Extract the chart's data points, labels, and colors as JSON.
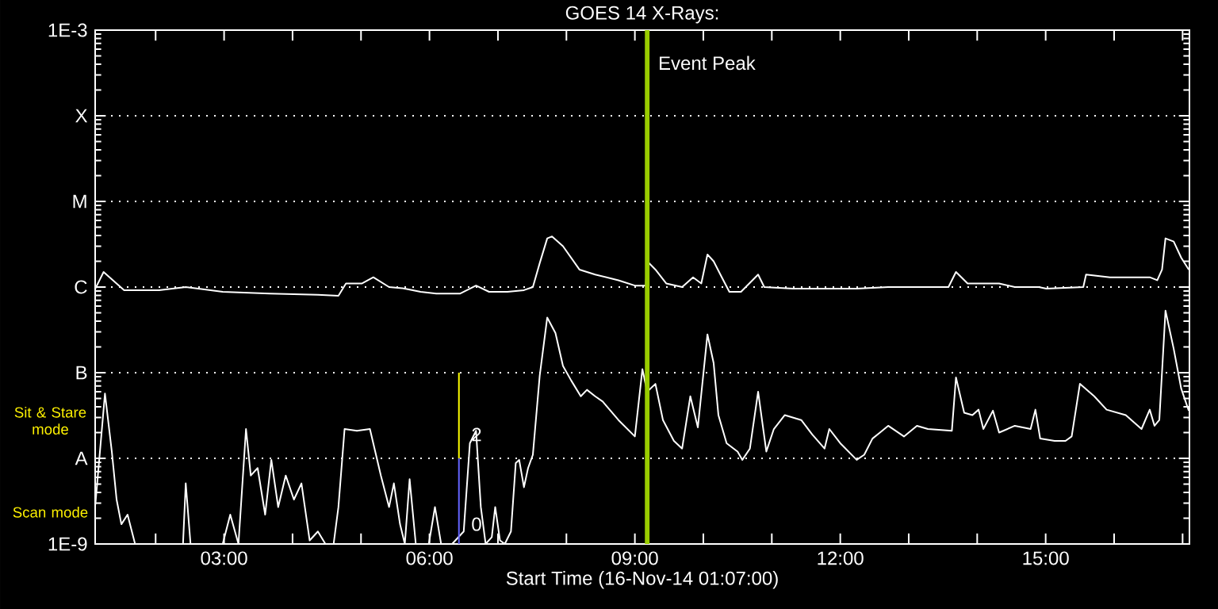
{
  "chart_data": {
    "type": "line",
    "title": "GOES 14 X-Rays:",
    "xlabel": "Start Time (16-Nov-14 01:07:00)",
    "xlim": [
      1.117,
      17.1
    ],
    "xticks": [
      {
        "value": 2,
        "label": null
      },
      {
        "value": 3,
        "label": "03:00"
      },
      {
        "value": 4,
        "label": null
      },
      {
        "value": 5,
        "label": null
      },
      {
        "value": 6,
        "label": "06:00"
      },
      {
        "value": 7,
        "label": null
      },
      {
        "value": 8,
        "label": null
      },
      {
        "value": 9,
        "label": "09:00"
      },
      {
        "value": 10,
        "label": null
      },
      {
        "value": 11,
        "label": null
      },
      {
        "value": 12,
        "label": "12:00"
      },
      {
        "value": 13,
        "label": null
      },
      {
        "value": 14,
        "label": null
      },
      {
        "value": 15,
        "label": "15:00"
      },
      {
        "value": 16,
        "label": null
      },
      {
        "value": 17,
        "label": null
      }
    ],
    "ylim": [
      1e-09,
      0.001
    ],
    "yticks": [
      {
        "value": 1e-09,
        "label": "1E-9"
      },
      {
        "value": 1e-08,
        "label": "A"
      },
      {
        "value": 1e-07,
        "label": "B"
      },
      {
        "value": 1e-06,
        "label": "C"
      },
      {
        "value": 1e-05,
        "label": "M"
      },
      {
        "value": 0.0001,
        "label": "X"
      },
      {
        "value": 0.001,
        "label": "1E-3"
      }
    ],
    "log": "y",
    "grid": "y",
    "marker": "none",
    "series": [
      {
        "color": "#ffffff",
        "x": [
          1.12,
          1.24,
          1.54,
          2.05,
          2.44,
          2.98,
          3.67,
          4.37,
          4.67,
          4.78,
          5.01,
          5.18,
          5.41,
          5.64,
          5.87,
          6.1,
          6.45,
          6.68,
          6.87,
          7.14,
          7.38,
          7.51,
          7.61,
          7.72,
          7.79,
          7.95,
          8.19,
          8.42,
          8.76,
          9.0,
          9.16,
          9.18,
          9.3,
          9.46,
          9.69,
          9.85,
          9.97,
          10.06,
          10.15,
          10.27,
          10.38,
          10.55,
          10.8,
          10.89,
          11.31,
          11.77,
          12.24,
          12.7,
          13.58,
          13.69,
          13.86,
          14.32,
          14.55,
          14.9,
          15.01,
          15.55,
          15.59,
          15.94,
          16.52,
          16.63,
          16.7,
          16.75,
          16.87,
          16.98,
          17.09
        ],
        "values": [
          9.6e-07,
          1.5e-06,
          9.2e-07,
          9.2e-07,
          1e-06,
          8.8e-07,
          8.4e-07,
          8.1e-07,
          7.9e-07,
          1.1e-06,
          1.1e-06,
          1.3e-06,
          1e-06,
          9.6e-07,
          8.8e-07,
          8.4e-07,
          8.4e-07,
          1.04e-06,
          8.8e-07,
          8.8e-07,
          9.2e-07,
          1e-06,
          1.9e-06,
          3.7e-06,
          3.9e-06,
          3e-06,
          1.6e-06,
          1.4e-06,
          1.2e-06,
          1.04e-06,
          1.04e-06,
          2e-06,
          1.6e-06,
          1.1e-06,
          1e-06,
          1.3e-06,
          1.1e-06,
          2.4e-06,
          2e-06,
          1.3e-06,
          8.8e-07,
          8.8e-07,
          1.4e-06,
          1e-06,
          9.6e-07,
          9.6e-07,
          9.6e-07,
          1e-06,
          1e-06,
          1.5e-06,
          1.1e-06,
          1.1e-06,
          1e-06,
          1e-06,
          9.6e-07,
          1e-06,
          1.4e-06,
          1.3e-06,
          1.3e-06,
          1.2e-06,
          1.6e-06,
          3.7e-06,
          3.4e-06,
          2.2e-06,
          1.6e-06
        ]
      },
      {
        "color": "#ffffff",
        "x": [
          1.12,
          1.26,
          1.36,
          1.43,
          1.5,
          1.59,
          1.7,
          2.05,
          2.4,
          2.44,
          2.51,
          2.98,
          3.09,
          3.21,
          3.32,
          3.39,
          3.49,
          3.6,
          3.69,
          3.79,
          3.9,
          4.02,
          4.13,
          4.25,
          4.37,
          4.48,
          4.6,
          4.67,
          4.76,
          4.94,
          5.13,
          5.29,
          5.41,
          5.48,
          5.57,
          5.64,
          5.71,
          5.8,
          5.99,
          6.08,
          6.17,
          6.33,
          6.5,
          6.59,
          6.68,
          6.75,
          6.82,
          6.91,
          6.96,
          7.03,
          7.1,
          7.19,
          7.26,
          7.31,
          7.38,
          7.44,
          7.51,
          7.61,
          7.72,
          7.84,
          7.95,
          8.07,
          8.21,
          8.3,
          8.42,
          8.53,
          8.76,
          9.0,
          9.11,
          9.18,
          9.3,
          9.41,
          9.57,
          9.69,
          9.81,
          9.92,
          10.06,
          10.15,
          10.22,
          10.34,
          10.5,
          10.57,
          10.68,
          10.8,
          10.92,
          11.03,
          11.19,
          11.43,
          11.59,
          11.77,
          11.84,
          12.0,
          12.24,
          12.35,
          12.47,
          12.58,
          12.7,
          12.93,
          13.12,
          13.28,
          13.63,
          13.69,
          13.81,
          13.93,
          14.02,
          14.09,
          14.23,
          14.32,
          14.55,
          14.78,
          14.85,
          14.92,
          15.13,
          15.29,
          15.38,
          15.5,
          15.71,
          15.89,
          16.17,
          16.4,
          16.52,
          16.59,
          16.66,
          16.75,
          16.87,
          16.98,
          17.09
        ],
        "values": [
          2.9e-09,
          5.7e-08,
          1.2e-08,
          3.3e-09,
          1.7e-09,
          2.2e-09,
          1e-09,
          1e-09,
          1e-09,
          5.1e-09,
          1e-09,
          1e-09,
          2.2e-09,
          1e-09,
          2.2e-08,
          6.3e-09,
          7.7e-09,
          2.2e-09,
          9.6e-09,
          2.7e-09,
          6.3e-09,
          3.3e-09,
          5.1e-09,
          1.1e-09,
          1.4e-09,
          1e-09,
          1e-09,
          2.7e-09,
          2.2e-08,
          2.1e-08,
          2.2e-08,
          6.3e-09,
          2.7e-09,
          5.1e-09,
          1.7e-09,
          1e-09,
          5.7e-09,
          1e-09,
          1e-09,
          2.7e-09,
          1e-09,
          1e-09,
          1.4e-09,
          1.5e-08,
          2.1e-08,
          2.7e-09,
          1e-09,
          1.2e-09,
          2.7e-09,
          1.1e-09,
          1e-09,
          1.4e-09,
          8.8e-09,
          9.6e-09,
          4.6e-09,
          7.7e-09,
          1.1e-08,
          9.2e-08,
          4.4e-07,
          2.9e-07,
          1.2e-07,
          8.1e-08,
          5.3e-08,
          6.3e-08,
          5.3e-08,
          4.6e-08,
          2.8e-08,
          1.8e-08,
          1.1e-07,
          6e-08,
          7.4e-08,
          2.8e-08,
          1.6e-08,
          1.3e-08,
          5.3e-08,
          2.3e-08,
          2.8e-07,
          1.3e-07,
          3.2e-08,
          1.5e-08,
          1.2e-08,
          9.6e-09,
          1.3e-08,
          6e-08,
          1.2e-08,
          2.2e-08,
          3.2e-08,
          2.8e-08,
          1.9e-08,
          1.3e-08,
          2.2e-08,
          1.5e-08,
          9.6e-09,
          1.1e-08,
          1.7e-08,
          2e-08,
          2.4e-08,
          1.8e-08,
          2.4e-08,
          2.2e-08,
          2.1e-08,
          8.8e-08,
          3.4e-08,
          3.2e-08,
          3.7e-08,
          2.2e-08,
          3.6e-08,
          2e-08,
          2.4e-08,
          2.2e-08,
          3.7e-08,
          1.7e-08,
          1.6e-08,
          1.6e-08,
          1.8e-08,
          7.4e-08,
          5.3e-08,
          3.7e-08,
          3.2e-08,
          2.2e-08,
          3.7e-08,
          2.4e-08,
          2.8e-08,
          5.3e-07,
          1.9e-07,
          6.5e-08,
          3.6e-08
        ]
      },
      {
        "color": "#ffff00",
        "x": [
          6.43,
          6.43
        ],
        "values": [
          1e-08,
          1e-07
        ]
      },
      {
        "color": "#6464ff",
        "x": [
          6.43,
          6.43
        ],
        "values": [
          1e-09,
          1e-08
        ]
      }
    ],
    "ref_lines": [
      {
        "axis": "x",
        "value": 9.18,
        "label": "Event Peak",
        "color": "#99cc00"
      }
    ],
    "annotations": [
      "Sit & Stare mode",
      "Scan mode",
      {
        "text": "2",
        "x": 6.45,
        "y": 1.9e-08
      },
      {
        "text": "0",
        "x": 6.45,
        "y": 1.7e-09
      }
    ]
  }
}
